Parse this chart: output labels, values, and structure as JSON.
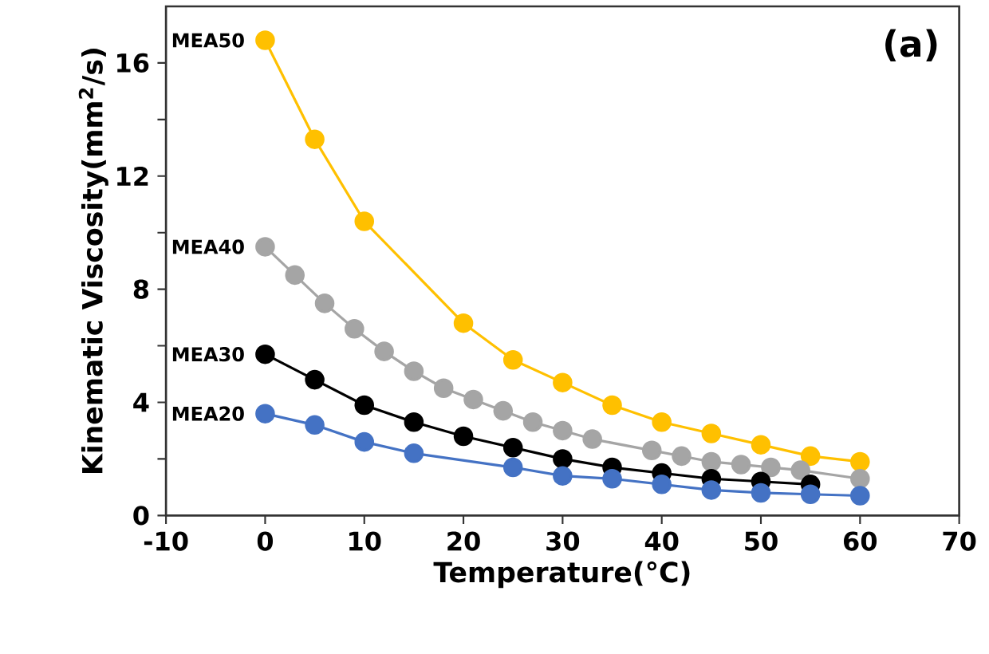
{
  "chart_data": {
    "type": "line",
    "xlabel": "Temperature(°C)",
    "ylabel": "Kinematic Viscosity(mm$^{2}$/s)",
    "annotations": [
      "(a)"
    ],
    "xlim": [
      -10,
      70
    ],
    "xticks": [
      -10,
      0,
      10,
      20,
      30,
      40,
      50,
      60,
      70
    ],
    "ylim": [
      0,
      18
    ],
    "yticks": [
      0,
      {
        "value": 2,
        "label": null
      },
      4,
      {
        "value": 6,
        "label": null
      },
      8,
      {
        "value": 10,
        "label": null
      },
      12,
      {
        "value": 14,
        "label": null
      },
      16
    ],
    "marker": "circle",
    "line_style": "solid",
    "grid": false,
    "legend": false,
    "series": [
      {
        "name": "MEA50",
        "color": "#ffc000",
        "x": [
          0,
          5,
          10,
          20,
          25,
          30,
          35,
          40,
          45,
          50,
          55,
          60
        ],
        "values": [
          16.8,
          13.3,
          10.4,
          6.8,
          5.5,
          4.7,
          3.9,
          3.3,
          2.9,
          2.5,
          2.1,
          1.9
        ]
      },
      {
        "name": "MEA40",
        "color": "#a5a5a5",
        "x": [
          0,
          3,
          6,
          9,
          12,
          15,
          18,
          21,
          24,
          27,
          30,
          33,
          39,
          42,
          45,
          48,
          51,
          54,
          60
        ],
        "values": [
          9.5,
          8.5,
          7.5,
          6.6,
          5.8,
          5.1,
          4.5,
          4.1,
          3.7,
          3.3,
          3.0,
          2.7,
          2.3,
          2.1,
          1.9,
          1.8,
          1.7,
          1.6,
          1.3
        ]
      },
      {
        "name": "MEA30",
        "color": "#000000",
        "x": [
          0,
          5,
          10,
          15,
          20,
          25,
          30,
          35,
          40,
          45,
          50,
          55
        ],
        "values": [
          5.7,
          4.8,
          3.9,
          3.3,
          2.8,
          2.4,
          2.0,
          1.7,
          1.5,
          1.3,
          1.2,
          1.1
        ]
      },
      {
        "name": "MEA20",
        "color": "#4472c4",
        "x": [
          0,
          5,
          10,
          15,
          25,
          30,
          35,
          40,
          45,
          50,
          55,
          60
        ],
        "values": [
          3.6,
          3.2,
          2.6,
          2.2,
          1.7,
          1.4,
          1.3,
          1.1,
          0.9,
          0.8,
          0.75,
          0.7
        ]
      }
    ]
  }
}
